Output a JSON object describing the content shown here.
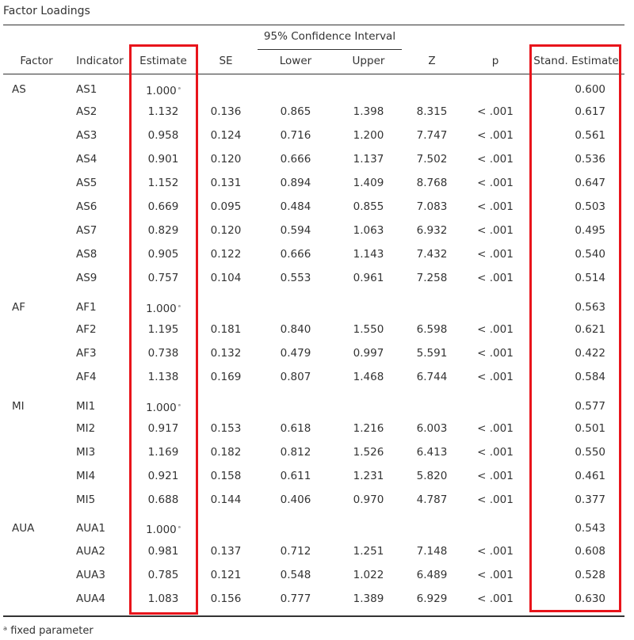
{
  "title": "Factor Loadings",
  "ci_label": "95% Confidence Interval",
  "columns": {
    "factor": "Factor",
    "indicator": "Indicator",
    "estimate": "Estimate",
    "se": "SE",
    "lower": "Lower",
    "upper": "Upper",
    "z": "Z",
    "p": "p",
    "std": "Stand. Estimate"
  },
  "fixed_mark": "ᵃ",
  "rows": [
    {
      "factor": "AS",
      "indicator": "AS1",
      "estimate": "1.000",
      "fixed": true,
      "se": "",
      "lower": "",
      "upper": "",
      "z": "",
      "p": "",
      "std": "0.600"
    },
    {
      "factor": "",
      "indicator": "AS2",
      "estimate": "1.132",
      "se": "0.136",
      "lower": "0.865",
      "upper": "1.398",
      "z": "8.315",
      "p": "< .001",
      "std": "0.617"
    },
    {
      "factor": "",
      "indicator": "AS3",
      "estimate": "0.958",
      "se": "0.124",
      "lower": "0.716",
      "upper": "1.200",
      "z": "7.747",
      "p": "< .001",
      "std": "0.561"
    },
    {
      "factor": "",
      "indicator": "AS4",
      "estimate": "0.901",
      "se": "0.120",
      "lower": "0.666",
      "upper": "1.137",
      "z": "7.502",
      "p": "< .001",
      "std": "0.536"
    },
    {
      "factor": "",
      "indicator": "AS5",
      "estimate": "1.152",
      "se": "0.131",
      "lower": "0.894",
      "upper": "1.409",
      "z": "8.768",
      "p": "< .001",
      "std": "0.647"
    },
    {
      "factor": "",
      "indicator": "AS6",
      "estimate": "0.669",
      "se": "0.095",
      "lower": "0.484",
      "upper": "0.855",
      "z": "7.083",
      "p": "< .001",
      "std": "0.503"
    },
    {
      "factor": "",
      "indicator": "AS7",
      "estimate": "0.829",
      "se": "0.120",
      "lower": "0.594",
      "upper": "1.063",
      "z": "6.932",
      "p": "< .001",
      "std": "0.495"
    },
    {
      "factor": "",
      "indicator": "AS8",
      "estimate": "0.905",
      "se": "0.122",
      "lower": "0.666",
      "upper": "1.143",
      "z": "7.432",
      "p": "< .001",
      "std": "0.540"
    },
    {
      "factor": "",
      "indicator": "AS9",
      "estimate": "0.757",
      "se": "0.104",
      "lower": "0.553",
      "upper": "0.961",
      "z": "7.258",
      "p": "< .001",
      "std": "0.514"
    },
    {
      "factor": "AF",
      "indicator": "AF1",
      "estimate": "1.000",
      "fixed": true,
      "se": "",
      "lower": "",
      "upper": "",
      "z": "",
      "p": "",
      "std": "0.563"
    },
    {
      "factor": "",
      "indicator": "AF2",
      "estimate": "1.195",
      "se": "0.181",
      "lower": "0.840",
      "upper": "1.550",
      "z": "6.598",
      "p": "< .001",
      "std": "0.621"
    },
    {
      "factor": "",
      "indicator": "AF3",
      "estimate": "0.738",
      "se": "0.132",
      "lower": "0.479",
      "upper": "0.997",
      "z": "5.591",
      "p": "< .001",
      "std": "0.422"
    },
    {
      "factor": "",
      "indicator": "AF4",
      "estimate": "1.138",
      "se": "0.169",
      "lower": "0.807",
      "upper": "1.468",
      "z": "6.744",
      "p": "< .001",
      "std": "0.584"
    },
    {
      "factor": "MI",
      "indicator": "MI1",
      "estimate": "1.000",
      "fixed": true,
      "se": "",
      "lower": "",
      "upper": "",
      "z": "",
      "p": "",
      "std": "0.577"
    },
    {
      "factor": "",
      "indicator": "MI2",
      "estimate": "0.917",
      "se": "0.153",
      "lower": "0.618",
      "upper": "1.216",
      "z": "6.003",
      "p": "< .001",
      "std": "0.501"
    },
    {
      "factor": "",
      "indicator": "MI3",
      "estimate": "1.169",
      "se": "0.182",
      "lower": "0.812",
      "upper": "1.526",
      "z": "6.413",
      "p": "< .001",
      "std": "0.550"
    },
    {
      "factor": "",
      "indicator": "MI4",
      "estimate": "0.921",
      "se": "0.158",
      "lower": "0.611",
      "upper": "1.231",
      "z": "5.820",
      "p": "< .001",
      "std": "0.461"
    },
    {
      "factor": "",
      "indicator": "MI5",
      "estimate": "0.688",
      "se": "0.144",
      "lower": "0.406",
      "upper": "0.970",
      "z": "4.787",
      "p": "< .001",
      "std": "0.377"
    },
    {
      "factor": "AUA",
      "indicator": "AUA1",
      "estimate": "1.000",
      "fixed": true,
      "se": "",
      "lower": "",
      "upper": "",
      "z": "",
      "p": "",
      "std": "0.543"
    },
    {
      "factor": "",
      "indicator": "AUA2",
      "estimate": "0.981",
      "se": "0.137",
      "lower": "0.712",
      "upper": "1.251",
      "z": "7.148",
      "p": "< .001",
      "std": "0.608"
    },
    {
      "factor": "",
      "indicator": "AUA3",
      "estimate": "0.785",
      "se": "0.121",
      "lower": "0.548",
      "upper": "1.022",
      "z": "6.489",
      "p": "< .001",
      "std": "0.528"
    },
    {
      "factor": "",
      "indicator": "AUA4",
      "estimate": "1.083",
      "se": "0.156",
      "lower": "0.777",
      "upper": "1.389",
      "z": "6.929",
      "p": "< .001",
      "std": "0.630"
    }
  ],
  "footnote": "ᵃ fixed parameter",
  "highlight_color": "#e8141b"
}
